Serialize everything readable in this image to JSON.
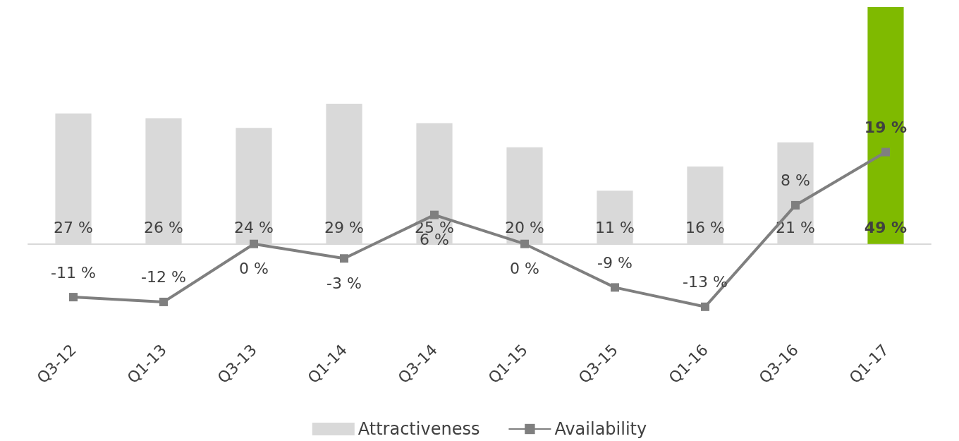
{
  "chart_data": {
    "type": "bar",
    "categories": [
      "Q3-12",
      "Q1-13",
      "Q3-13",
      "Q1-14",
      "Q3-14",
      "Q1-15",
      "Q3-15",
      "Q1-16",
      "Q3-16",
      "Q1-17"
    ],
    "series": [
      {
        "name": "Attractiveness",
        "color": "#d9d9d9",
        "colors": [
          "#d9d9d9",
          "#d9d9d9",
          "#d9d9d9",
          "#d9d9d9",
          "#d9d9d9",
          "#d9d9d9",
          "#d9d9d9",
          "#d9d9d9",
          "#d9d9d9",
          "#7fba00"
        ],
        "values": [
          27,
          26,
          24,
          29,
          25,
          20,
          11,
          16,
          21,
          49
        ],
        "value_labels": [
          "27 %",
          "26 %",
          "24 %",
          "29 %",
          "25 %",
          "20 %",
          "11 %",
          "16 %",
          "21 %",
          "49 %"
        ]
      },
      {
        "name": "Availability",
        "type": "line",
        "color": "#7f7f7f",
        "marker": "square",
        "values": [
          -11,
          -12,
          0,
          -3,
          6,
          0,
          -9,
          -13,
          8,
          19
        ],
        "value_labels": [
          "-11 %",
          "-12 %",
          "0 %",
          "-3 %",
          "6 %",
          "0 %",
          "-9 %",
          "-13 %",
          "8 %",
          "19 %"
        ]
      }
    ],
    "legend": "bottom"
  }
}
